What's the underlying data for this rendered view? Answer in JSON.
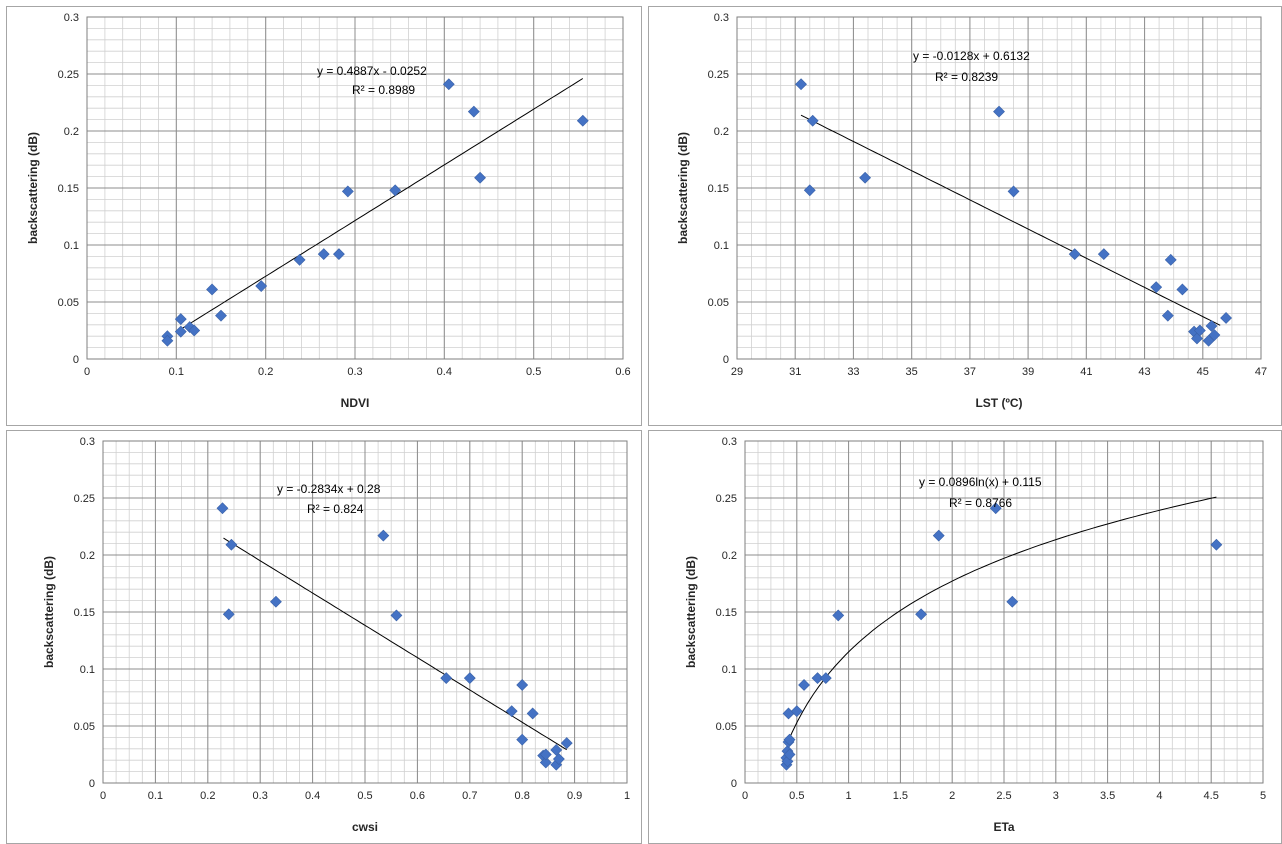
{
  "chart_data": [
    {
      "type": "scatter",
      "xlabel": "NDVI",
      "ylabel": "backscattering (dB)",
      "xlim": [
        0,
        0.6
      ],
      "ylim": [
        0,
        0.3
      ],
      "xticks": [
        "0",
        "0.1",
        "0.2",
        "0.3",
        "0.4",
        "0.5",
        "0.6"
      ],
      "yticks": [
        "0",
        "0.05",
        "0.1",
        "0.15",
        "0.2",
        "0.25",
        "0.3"
      ],
      "x_minor_step": 0.02,
      "y_minor_step": 0.01,
      "grid": true,
      "marker_color": "#4472c4",
      "trend": {
        "kind": "linear",
        "a": 0.4887,
        "b": -0.0252,
        "x_range": [
          0.1,
          0.555
        ]
      },
      "equation": "y = 0.4887x - 0.0252",
      "r2": "R² = 0.8989",
      "points": [
        [
          0.09,
          0.02
        ],
        [
          0.09,
          0.016
        ],
        [
          0.105,
          0.024
        ],
        [
          0.105,
          0.035
        ],
        [
          0.115,
          0.028
        ],
        [
          0.12,
          0.025
        ],
        [
          0.14,
          0.061
        ],
        [
          0.15,
          0.038
        ],
        [
          0.195,
          0.064
        ],
        [
          0.238,
          0.087
        ],
        [
          0.265,
          0.092
        ],
        [
          0.282,
          0.092
        ],
        [
          0.292,
          0.147
        ],
        [
          0.345,
          0.148
        ],
        [
          0.405,
          0.241
        ],
        [
          0.433,
          0.217
        ],
        [
          0.44,
          0.159
        ],
        [
          0.555,
          0.209
        ]
      ]
    },
    {
      "type": "scatter",
      "xlabel": "LST (ºC)",
      "ylabel": "backscattering (dB)",
      "xlim": [
        29,
        47
      ],
      "ylim": [
        0,
        0.3
      ],
      "xticks": [
        "29",
        "31",
        "33",
        "35",
        "37",
        "39",
        "41",
        "43",
        "45",
        "47"
      ],
      "yticks": [
        "0",
        "0.05",
        "0.1",
        "0.15",
        "0.2",
        "0.25",
        "0.3"
      ],
      "x_minor_step": 0.5,
      "y_minor_step": 0.01,
      "grid": true,
      "marker_color": "#4472c4",
      "trend": {
        "kind": "linear",
        "a": -0.0128,
        "b": 0.6132,
        "x_range": [
          31.2,
          45.6
        ]
      },
      "equation": "y = -0.0128x + 0.6132",
      "r2": "R² = 0.8239",
      "points": [
        [
          31.2,
          0.241
        ],
        [
          31.5,
          0.148
        ],
        [
          31.6,
          0.209
        ],
        [
          33.4,
          0.159
        ],
        [
          38.0,
          0.217
        ],
        [
          38.5,
          0.147
        ],
        [
          40.6,
          0.092
        ],
        [
          41.6,
          0.092
        ],
        [
          43.4,
          0.063
        ],
        [
          43.8,
          0.038
        ],
        [
          43.9,
          0.087
        ],
        [
          44.3,
          0.061
        ],
        [
          44.7,
          0.024
        ],
        [
          44.8,
          0.018
        ],
        [
          44.9,
          0.025
        ],
        [
          45.2,
          0.016
        ],
        [
          45.3,
          0.029
        ],
        [
          45.4,
          0.021
        ],
        [
          45.8,
          0.036
        ]
      ]
    },
    {
      "type": "scatter",
      "xlabel": "cwsi",
      "ylabel": "backscattering (dB)",
      "xlim": [
        0,
        1
      ],
      "ylim": [
        0,
        0.3
      ],
      "xticks": [
        "0",
        "0.1",
        "0.2",
        "0.3",
        "0.4",
        "0.5",
        "0.6",
        "0.7",
        "0.8",
        "0.9",
        "1"
      ],
      "yticks": [
        "0",
        "0.05",
        "0.1",
        "0.15",
        "0.2",
        "0.25",
        "0.3"
      ],
      "x_minor_step": 0.025,
      "y_minor_step": 0.01,
      "grid": true,
      "marker_color": "#4472c4",
      "trend": {
        "kind": "linear",
        "a": -0.2834,
        "b": 0.28,
        "x_range": [
          0.23,
          0.885
        ]
      },
      "equation": "y = -0.2834x + 0.28",
      "r2": "R² = 0.824",
      "points": [
        [
          0.228,
          0.241
        ],
        [
          0.24,
          0.148
        ],
        [
          0.245,
          0.209
        ],
        [
          0.33,
          0.159
        ],
        [
          0.535,
          0.217
        ],
        [
          0.56,
          0.147
        ],
        [
          0.655,
          0.092
        ],
        [
          0.7,
          0.092
        ],
        [
          0.78,
          0.063
        ],
        [
          0.8,
          0.038
        ],
        [
          0.8,
          0.086
        ],
        [
          0.82,
          0.061
        ],
        [
          0.84,
          0.024
        ],
        [
          0.845,
          0.018
        ],
        [
          0.845,
          0.025
        ],
        [
          0.865,
          0.016
        ],
        [
          0.865,
          0.029
        ],
        [
          0.87,
          0.021
        ],
        [
          0.885,
          0.035
        ]
      ]
    },
    {
      "type": "scatter",
      "xlabel": "ETa",
      "ylabel": "backscattering (dB)",
      "xlim": [
        0,
        5
      ],
      "ylim": [
        0,
        0.3
      ],
      "xticks": [
        "0",
        "0.5",
        "1",
        "1.5",
        "2",
        "2.5",
        "3",
        "3.5",
        "4",
        "4.5",
        "5"
      ],
      "yticks": [
        "0",
        "0.05",
        "0.1",
        "0.15",
        "0.2",
        "0.25",
        "0.3"
      ],
      "x_minor_step": 0.125,
      "y_minor_step": 0.01,
      "grid": true,
      "marker_color": "#4472c4",
      "trend": {
        "kind": "log",
        "a": 0.0896,
        "b": 0.115,
        "x_range": [
          0.4,
          4.55
        ]
      },
      "equation": "y = 0.0896ln(x) + 0.115",
      "r2": "R² = 0.8766",
      "points": [
        [
          0.4,
          0.022
        ],
        [
          0.4,
          0.016
        ],
        [
          0.41,
          0.028
        ],
        [
          0.41,
          0.019
        ],
        [
          0.42,
          0.061
        ],
        [
          0.42,
          0.036
        ],
        [
          0.43,
          0.025
        ],
        [
          0.43,
          0.038
        ],
        [
          0.5,
          0.063
        ],
        [
          0.57,
          0.086
        ],
        [
          0.7,
          0.092
        ],
        [
          0.78,
          0.092
        ],
        [
          0.9,
          0.147
        ],
        [
          1.7,
          0.148
        ],
        [
          1.87,
          0.217
        ],
        [
          2.42,
          0.241
        ],
        [
          2.58,
          0.159
        ],
        [
          4.55,
          0.209
        ]
      ]
    }
  ]
}
